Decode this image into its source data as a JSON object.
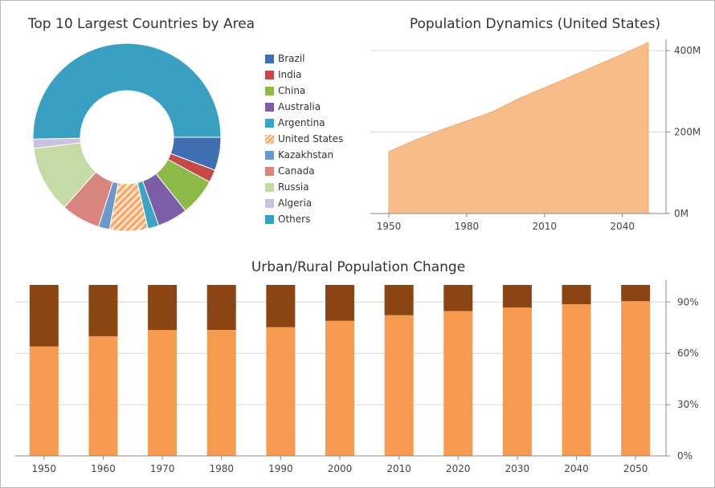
{
  "chart_data": [
    {
      "type": "pie",
      "title": "Top 10 Largest Countries by Area",
      "categories": [
        "Brazil",
        "India",
        "China",
        "Australia",
        "Argentina",
        "United States",
        "Kazakhstan",
        "Canada",
        "Russia",
        "Algeria",
        "Others"
      ],
      "values": [
        5.7,
        2.2,
        6.4,
        5.2,
        1.9,
        6.6,
        1.9,
        6.7,
        11.5,
        1.6,
        50.3
      ],
      "colors": [
        "#3f6fb0",
        "#c54a47",
        "#8db948",
        "#7c5da8",
        "#3ba6c4",
        "#f8a667",
        "#6b98c9",
        "#d88580",
        "#c5dba5",
        "#c9c1dd",
        "#3aa0c1"
      ],
      "hatched": [
        "United States"
      ],
      "legend": "right"
    },
    {
      "type": "area",
      "title": "Population Dynamics (United States)",
      "x": [
        1950,
        1960,
        1970,
        1980,
        1990,
        2000,
        2010,
        2020,
        2030,
        2040,
        2050
      ],
      "values": [
        152,
        180,
        205,
        227,
        250,
        282,
        309,
        336,
        364,
        391,
        420
      ],
      "xticks": [
        "1950",
        "1980",
        "2010",
        "2040"
      ],
      "yticks": [
        "0M",
        "200M",
        "400M"
      ],
      "ylim": [
        0,
        420
      ],
      "color": "#f7bc88",
      "grid": true
    },
    {
      "type": "bar",
      "stacked": true,
      "title": "Urban/Rural Population Change",
      "categories": [
        "1950",
        "1960",
        "1970",
        "1980",
        "1990",
        "2000",
        "2010",
        "2020",
        "2030",
        "2040",
        "2050"
      ],
      "series": [
        {
          "values": [
            64,
            70,
            73.6,
            73.7,
            75.3,
            79,
            82.3,
            84.7,
            86.8,
            88.7,
            90.5
          ],
          "color": "#f79b51"
        },
        {
          "values": [
            36,
            30,
            26.4,
            26.3,
            24.7,
            21,
            17.7,
            15.3,
            13.2,
            11.3,
            9.5
          ],
          "color": "#8b4512"
        }
      ],
      "yticks": [
        "0%",
        "30%",
        "60%",
        "90%"
      ],
      "ylim": [
        0,
        100
      ],
      "grid": true
    }
  ]
}
